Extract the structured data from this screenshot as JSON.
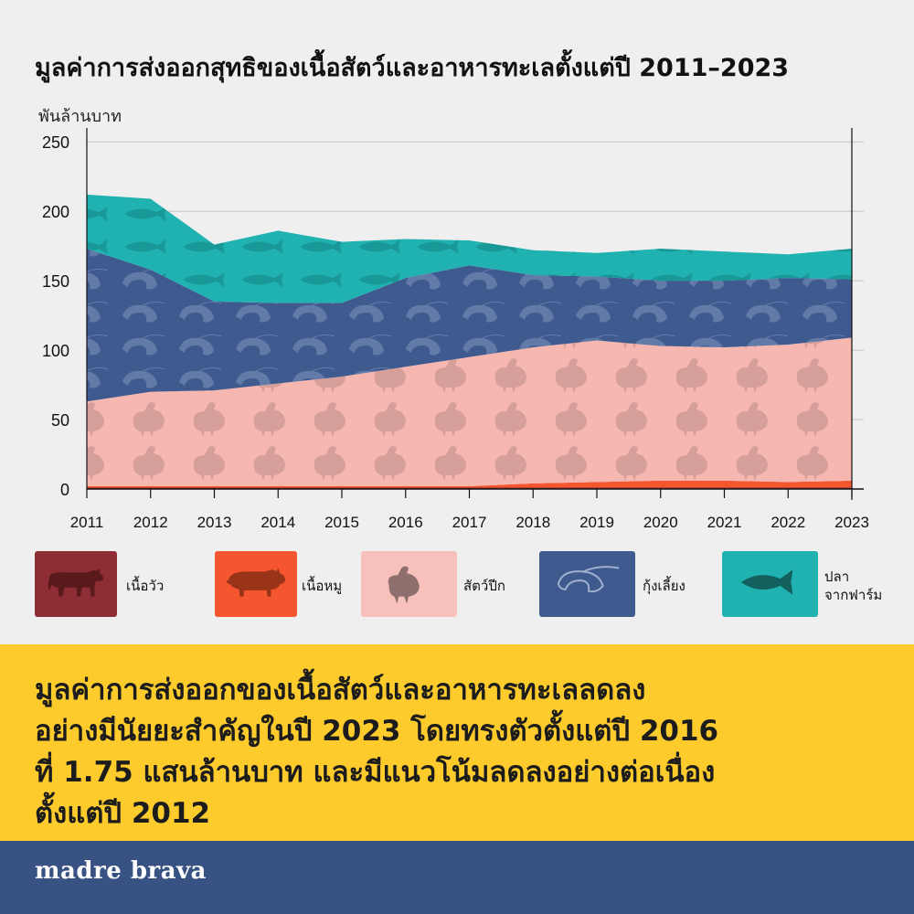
{
  "header": {
    "title": "มูลค่าการส่งออกสุทธิของเนื้อสัตว์และอาหารทะเลตั้งแต่ปี 2011–2023",
    "unit": "พันล้านบาท"
  },
  "chart_data": {
    "type": "area",
    "stacked": true,
    "title": "มูลค่าการส่งออกสุทธิของเนื้อสัตว์และอาหารทะเลตั้งแต่ปี 2011–2023",
    "ylabel": "พันล้านบาท",
    "xlabel": "",
    "ylim": [
      0,
      260
    ],
    "yticks": [
      0,
      50,
      100,
      150,
      200,
      250
    ],
    "x": [
      "2011",
      "2012",
      "2013",
      "2014",
      "2015",
      "2016",
      "2017",
      "2018",
      "2019",
      "2020",
      "2021",
      "2022",
      "2023"
    ],
    "grid": true,
    "series": [
      {
        "name": "เนื้อวัว",
        "color": "#8e2e34",
        "values": [
          1,
          1,
          1,
          1,
          1,
          1,
          1,
          1,
          1,
          1,
          1,
          1,
          1
        ]
      },
      {
        "name": "เนื้อหมู",
        "color": "#f5562f",
        "values": [
          1,
          1,
          1,
          1,
          1,
          1,
          1,
          3,
          4,
          5,
          5,
          4,
          5
        ]
      },
      {
        "name": "สัตว์ปีก",
        "color": "#f6b7b0",
        "values": [
          61,
          68,
          69,
          74,
          79,
          86,
          93,
          98,
          102,
          97,
          96,
          99,
          103
        ]
      },
      {
        "name": "กุ้งเลี้ยง",
        "color": "#3f5a8f",
        "values": [
          110,
          88,
          64,
          58,
          53,
          64,
          66,
          52,
          46,
          47,
          48,
          48,
          42
        ]
      },
      {
        "name": "ปลา\nจากฟาร์ม",
        "color": "#20b2b1",
        "values": [
          39,
          51,
          41,
          52,
          44,
          28,
          18,
          18,
          17,
          23,
          21,
          17,
          22
        ]
      }
    ]
  },
  "legend": {
    "items": [
      {
        "label": "เนื้อวัว",
        "icon": "cow-icon",
        "color": "#8e2e34",
        "icon_color": "#5a1a1c"
      },
      {
        "label": "เนื้อหมู",
        "icon": "pig-icon",
        "color": "#f5562f",
        "icon_color": "#9a3418"
      },
      {
        "label": "สัตว์ปีก",
        "icon": "chicken-icon",
        "color": "#f8c0ba",
        "icon_color": "#8f6f6e"
      },
      {
        "label": "กุ้งเลี้ยง",
        "icon": "shrimp-icon",
        "color": "#3f5a8f",
        "icon_color": "#9fb0d0"
      },
      {
        "label": "ปลา\nจากฟาร์ม",
        "icon": "fish-icon",
        "color": "#20b2b1",
        "icon_color": "#12615f"
      }
    ]
  },
  "banner": {
    "text": "มูลค่าการส่งออกของเนื้อสัตว์และอาหารทะเลลดลง\nอย่างมีนัยยะสำคัญในปี 2023 โดยทรงตัวตั้งแต่ปี 2016\nที่ 1.75 แสนล้านบาท และมีแนวโน้มลดลงอย่างต่อเนื่อง\nตั้งแต่ปี 2012",
    "color": "#fdcb2c"
  },
  "footer": {
    "brand": "madre brava",
    "color": "#385383"
  }
}
